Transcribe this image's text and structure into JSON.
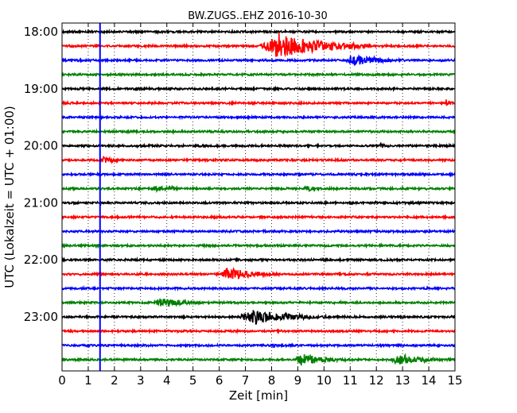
{
  "chart_data": {
    "type": "line",
    "title": "BW.ZUGS..EHZ 2016-10-30",
    "xlabel": "Zeit  [min]",
    "ylabel": "UTC (Lokalzeit = UTC + 01:00)",
    "xlim": [
      0,
      15
    ],
    "x_ticks": [
      "0",
      "1",
      "2",
      "3",
      "4",
      "5",
      "6",
      "7",
      "8",
      "9",
      "10",
      "11",
      "12",
      "13",
      "14",
      "15"
    ],
    "y_tick_labels": [
      "18:00",
      "19:00",
      "20:00",
      "21:00",
      "22:00",
      "23:00"
    ],
    "grid": "vertical dotted",
    "line_colors": [
      "#000000",
      "#ff0000",
      "#0000ff",
      "#008000"
    ],
    "marker_line": {
      "x": 1.45,
      "color": "#0000ff"
    },
    "traces": [
      {
        "start": "18:00",
        "color": "#000000",
        "events": []
      },
      {
        "start": "18:15",
        "color": "#ff0000",
        "events": [
          {
            "t0": 7.5,
            "t1": 11.8,
            "amp": 1.0
          }
        ]
      },
      {
        "start": "18:30",
        "color": "#0000ff",
        "events": [
          {
            "t0": 10.8,
            "t1": 13.0,
            "amp": 0.5
          }
        ]
      },
      {
        "start": "18:45",
        "color": "#008000",
        "events": []
      },
      {
        "start": "19:00",
        "color": "#000000",
        "events": []
      },
      {
        "start": "19:15",
        "color": "#ff0000",
        "events": [
          {
            "t0": 14.6,
            "t1": 15.0,
            "amp": 0.3
          }
        ]
      },
      {
        "start": "19:30",
        "color": "#0000ff",
        "events": []
      },
      {
        "start": "19:45",
        "color": "#008000",
        "events": []
      },
      {
        "start": "20:00",
        "color": "#000000",
        "events": [
          {
            "t0": 12.1,
            "t1": 12.5,
            "amp": 0.3
          }
        ]
      },
      {
        "start": "20:15",
        "color": "#ff0000",
        "events": [
          {
            "t0": 1.4,
            "t1": 2.5,
            "amp": 0.3
          }
        ]
      },
      {
        "start": "20:30",
        "color": "#0000ff",
        "events": []
      },
      {
        "start": "20:45",
        "color": "#008000",
        "events": [
          {
            "t0": 3.3,
            "t1": 5.5,
            "amp": 0.25
          },
          {
            "t0": 9.2,
            "t1": 10.2,
            "amp": 0.25
          }
        ]
      },
      {
        "start": "21:00",
        "color": "#000000",
        "events": []
      },
      {
        "start": "21:15",
        "color": "#ff0000",
        "events": []
      },
      {
        "start": "21:30",
        "color": "#0000ff",
        "events": []
      },
      {
        "start": "21:45",
        "color": "#008000",
        "events": []
      },
      {
        "start": "22:00",
        "color": "#000000",
        "events": []
      },
      {
        "start": "22:15",
        "color": "#ff0000",
        "events": [
          {
            "t0": 6.0,
            "t1": 8.3,
            "amp": 0.55
          }
        ]
      },
      {
        "start": "22:30",
        "color": "#0000ff",
        "events": []
      },
      {
        "start": "22:45",
        "color": "#008000",
        "events": [
          {
            "t0": 3.4,
            "t1": 5.8,
            "amp": 0.35
          }
        ]
      },
      {
        "start": "23:00",
        "color": "#000000",
        "events": [
          {
            "t0": 6.7,
            "t1": 10.2,
            "amp": 0.6
          }
        ]
      },
      {
        "start": "23:15",
        "color": "#ff0000",
        "events": []
      },
      {
        "start": "23:30",
        "color": "#0000ff",
        "events": [
          {
            "t0": 8.0,
            "t1": 8.3,
            "amp": 0.25
          }
        ]
      },
      {
        "start": "23:45",
        "color": "#008000",
        "events": [
          {
            "t0": 8.8,
            "t1": 11.2,
            "amp": 0.45
          },
          {
            "t0": 12.5,
            "t1": 15.0,
            "amp": 0.45
          }
        ]
      }
    ]
  }
}
